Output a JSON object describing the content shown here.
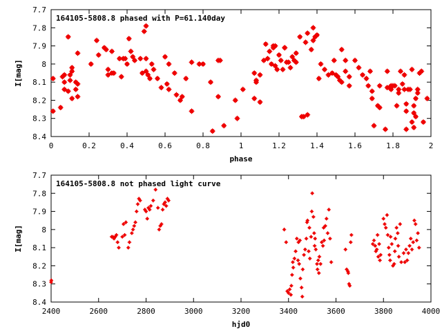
{
  "chart_data": [
    {
      "type": "scatter",
      "title": "164105-5808.8 phased with P=61.140day",
      "xlabel": "phase",
      "ylabel": "I[mag]",
      "xlim": [
        0,
        2
      ],
      "ylim": [
        7.7,
        8.4
      ],
      "y_inverted": true,
      "xticks": [
        0,
        0.2,
        0.4,
        0.6,
        0.8,
        1,
        1.2,
        1.4,
        1.6,
        1.8,
        2
      ],
      "xtick_labels": [
        "0",
        "0.2",
        "0.4",
        "0.6",
        "0.8",
        "1",
        "1.2",
        "1.4",
        "1.6",
        "1.8",
        "2"
      ],
      "yticks": [
        7.7,
        7.8,
        7.9,
        8.0,
        8.1,
        8.2,
        8.3,
        8.4
      ],
      "ytick_labels": [
        "7.7",
        "7.8",
        "7.9",
        "8",
        "8.1",
        "8.2",
        "8.3",
        "8.4"
      ],
      "grid": false,
      "color": "#ee0000",
      "points": [
        [
          0.01,
          8.08
        ],
        [
          0.01,
          8.26
        ],
        [
          0.05,
          8.24
        ],
        [
          0.06,
          8.07
        ],
        [
          0.07,
          8.06
        ],
        [
          0.07,
          8.14
        ],
        [
          0.07,
          8.1
        ],
        [
          0.09,
          8.15
        ],
        [
          0.09,
          7.85
        ],
        [
          0.1,
          8.09
        ],
        [
          0.1,
          8.06
        ],
        [
          0.11,
          8.04
        ],
        [
          0.11,
          8.02
        ],
        [
          0.11,
          8.19
        ],
        [
          0.13,
          8.1
        ],
        [
          0.13,
          8.14
        ],
        [
          0.14,
          8.11
        ],
        [
          0.14,
          8.18
        ],
        [
          0.14,
          7.94
        ],
        [
          0.21,
          8.0
        ],
        [
          0.24,
          7.87
        ],
        [
          0.25,
          7.95
        ],
        [
          0.28,
          7.91
        ],
        [
          0.29,
          7.92
        ],
        [
          0.3,
          8.06
        ],
        [
          0.3,
          8.03
        ],
        [
          0.32,
          8.05
        ],
        [
          0.32,
          7.93
        ],
        [
          0.33,
          8.05
        ],
        [
          0.36,
          7.97
        ],
        [
          0.37,
          8.07
        ],
        [
          0.38,
          7.97
        ],
        [
          0.39,
          7.97
        ],
        [
          0.4,
          8.0
        ],
        [
          0.41,
          7.86
        ],
        [
          0.42,
          7.93
        ],
        [
          0.43,
          7.96
        ],
        [
          0.44,
          7.98
        ],
        [
          0.47,
          7.97
        ],
        [
          0.48,
          8.05
        ],
        [
          0.49,
          7.82
        ],
        [
          0.5,
          8.04
        ],
        [
          0.5,
          7.79
        ],
        [
          0.5,
          7.97
        ],
        [
          0.51,
          8.06
        ],
        [
          0.52,
          8.08
        ],
        [
          0.53,
          8.0
        ],
        [
          0.54,
          8.03
        ],
        [
          0.56,
          8.08
        ],
        [
          0.58,
          8.13
        ],
        [
          0.6,
          7.96
        ],
        [
          0.61,
          8.11
        ],
        [
          0.62,
          8.0
        ],
        [
          0.62,
          8.14
        ],
        [
          0.65,
          8.05
        ],
        [
          0.66,
          8.17
        ],
        [
          0.68,
          8.2
        ],
        [
          0.69,
          8.18
        ],
        [
          0.71,
          8.08
        ],
        [
          0.74,
          7.99
        ],
        [
          0.74,
          8.26
        ],
        [
          0.78,
          8.0
        ],
        [
          0.8,
          8.0
        ],
        [
          0.84,
          8.1
        ],
        [
          0.85,
          8.37
        ],
        [
          0.88,
          8.18
        ],
        [
          0.88,
          7.98
        ],
        [
          0.89,
          7.98
        ],
        [
          0.91,
          8.34
        ],
        [
          0.97,
          8.2
        ],
        [
          0.98,
          8.3
        ],
        [
          1.01,
          8.14
        ],
        [
          1.07,
          8.05
        ],
        [
          1.07,
          8.19
        ],
        [
          1.08,
          8.09
        ],
        [
          1.08,
          8.1
        ],
        [
          1.1,
          8.21
        ],
        [
          1.1,
          8.06
        ],
        [
          1.12,
          7.98
        ],
        [
          1.13,
          7.89
        ],
        [
          1.14,
          7.97
        ],
        [
          1.15,
          7.93
        ],
        [
          1.16,
          8.0
        ],
        [
          1.17,
          7.9
        ],
        [
          1.17,
          7.91
        ],
        [
          1.18,
          7.9
        ],
        [
          1.18,
          8.01
        ],
        [
          1.19,
          8.03
        ],
        [
          1.2,
          7.95
        ],
        [
          1.21,
          7.98
        ],
        [
          1.22,
          8.03
        ],
        [
          1.23,
          7.91
        ],
        [
          1.23,
          7.91
        ],
        [
          1.24,
          7.99
        ],
        [
          1.25,
          7.99
        ],
        [
          1.26,
          8.02
        ],
        [
          1.27,
          7.96
        ],
        [
          1.28,
          7.98
        ],
        [
          1.29,
          7.99
        ],
        [
          1.29,
          7.94
        ],
        [
          1.31,
          7.85
        ],
        [
          1.32,
          8.29
        ],
        [
          1.32,
          8.29
        ],
        [
          1.33,
          8.29
        ],
        [
          1.34,
          7.88
        ],
        [
          1.35,
          7.83
        ],
        [
          1.35,
          8.28
        ],
        [
          1.37,
          7.92
        ],
        [
          1.38,
          7.87
        ],
        [
          1.38,
          7.8
        ],
        [
          1.39,
          7.85
        ],
        [
          1.4,
          7.84
        ],
        [
          1.41,
          8.08
        ],
        [
          1.42,
          8.0
        ],
        [
          1.44,
          8.03
        ],
        [
          1.46,
          8.06
        ],
        [
          1.48,
          8.05
        ],
        [
          1.49,
          7.98
        ],
        [
          1.5,
          8.06
        ],
        [
          1.51,
          8.07
        ],
        [
          1.52,
          8.09
        ],
        [
          1.53,
          7.92
        ],
        [
          1.53,
          8.1
        ],
        [
          1.55,
          7.98
        ],
        [
          1.55,
          8.04
        ],
        [
          1.57,
          8.12
        ],
        [
          1.57,
          8.07
        ],
        [
          1.6,
          7.98
        ],
        [
          1.62,
          8.02
        ],
        [
          1.64,
          8.06
        ],
        [
          1.66,
          8.08
        ],
        [
          1.67,
          8.12
        ],
        [
          1.68,
          8.04
        ],
        [
          1.69,
          8.15
        ],
        [
          1.69,
          8.19
        ],
        [
          1.7,
          8.34
        ],
        [
          1.72,
          8.23
        ],
        [
          1.73,
          8.24
        ],
        [
          1.73,
          8.12
        ],
        [
          1.76,
          8.36
        ],
        [
          1.77,
          8.04
        ],
        [
          1.77,
          8.13
        ],
        [
          1.78,
          8.13
        ],
        [
          1.79,
          8.12
        ],
        [
          1.79,
          8.14
        ],
        [
          1.8,
          8.12
        ],
        [
          1.8,
          8.12
        ],
        [
          1.81,
          8.12
        ],
        [
          1.82,
          8.23
        ],
        [
          1.83,
          8.14
        ],
        [
          1.83,
          8.16
        ],
        [
          1.84,
          8.04
        ],
        [
          1.85,
          8.11
        ],
        [
          1.86,
          8.14
        ],
        [
          1.86,
          8.06
        ],
        [
          1.87,
          8.26
        ],
        [
          1.87,
          8.22
        ],
        [
          1.87,
          8.36
        ],
        [
          1.88,
          8.14
        ],
        [
          1.89,
          8.14
        ],
        [
          1.9,
          8.03
        ],
        [
          1.9,
          8.32
        ],
        [
          1.91,
          8.27
        ],
        [
          1.91,
          8.23
        ],
        [
          1.91,
          8.35
        ],
        [
          1.92,
          8.19
        ],
        [
          1.92,
          8.29
        ],
        [
          1.93,
          8.14
        ],
        [
          1.93,
          8.16
        ],
        [
          1.94,
          8.05
        ],
        [
          1.95,
          8.04
        ],
        [
          1.96,
          8.32
        ],
        [
          1.98,
          8.19
        ]
      ]
    },
    {
      "type": "scatter",
      "title": "164105-5808.8 not phased light curve",
      "xlabel": "hjd0",
      "ylabel": "I[mag]",
      "xlim": [
        2400,
        4000
      ],
      "ylim": [
        7.7,
        8.4
      ],
      "y_inverted": true,
      "xticks": [
        2400,
        2600,
        2800,
        3000,
        3200,
        3400,
        3600,
        3800,
        4000
      ],
      "xtick_labels": [
        "2400",
        "2600",
        "2800",
        "3000",
        "3200",
        "3400",
        "3600",
        "3800",
        "4000"
      ],
      "yticks": [
        7.7,
        7.8,
        7.9,
        8.0,
        8.1,
        8.2,
        8.3,
        8.4
      ],
      "ytick_labels": [
        "7.7",
        "7.8",
        "7.9",
        "8",
        "8.1",
        "8.2",
        "8.3",
        "8.4"
      ],
      "grid": false,
      "color": "#ee0000",
      "points": [
        [
          2400,
          8.29
        ],
        [
          2401,
          8.28
        ],
        [
          2655,
          8.04
        ],
        [
          2660,
          8.04
        ],
        [
          2665,
          8.05
        ],
        [
          2670,
          8.04
        ],
        [
          2675,
          8.03
        ],
        [
          2680,
          8.07
        ],
        [
          2685,
          8.1
        ],
        [
          2700,
          8.04
        ],
        [
          2705,
          7.97
        ],
        [
          2710,
          8.03
        ],
        [
          2715,
          7.96
        ],
        [
          2725,
          8.1
        ],
        [
          2730,
          8.07
        ],
        [
          2740,
          8.02
        ],
        [
          2745,
          8.0
        ],
        [
          2750,
          7.98
        ],
        [
          2755,
          7.96
        ],
        [
          2760,
          7.9
        ],
        [
          2765,
          7.86
        ],
        [
          2770,
          7.83
        ],
        [
          2775,
          7.84
        ],
        [
          2795,
          7.89
        ],
        [
          2800,
          7.9
        ],
        [
          2805,
          7.94
        ],
        [
          2810,
          7.88
        ],
        [
          2815,
          7.89
        ],
        [
          2820,
          7.87
        ],
        [
          2830,
          7.84
        ],
        [
          2840,
          7.78
        ],
        [
          2850,
          7.88
        ],
        [
          2855,
          8.0
        ],
        [
          2860,
          7.98
        ],
        [
          2865,
          7.97
        ],
        [
          2870,
          7.89
        ],
        [
          2875,
          7.86
        ],
        [
          2880,
          7.85
        ],
        [
          2885,
          7.87
        ],
        [
          2890,
          7.83
        ],
        [
          2895,
          7.84
        ],
        [
          3382,
          8.0
        ],
        [
          3390,
          8.07
        ],
        [
          3395,
          8.34
        ],
        [
          3400,
          8.35
        ],
        [
          3405,
          8.33
        ],
        [
          3410,
          8.36
        ],
        [
          3412,
          8.31
        ],
        [
          3415,
          8.25
        ],
        [
          3418,
          8.18
        ],
        [
          3420,
          8.21
        ],
        [
          3425,
          8.16
        ],
        [
          3430,
          8.12
        ],
        [
          3435,
          8.05
        ],
        [
          3440,
          8.17
        ],
        [
          3442,
          8.07
        ],
        [
          3445,
          8.19
        ],
        [
          3448,
          8.06
        ],
        [
          3450,
          8.27
        ],
        [
          3455,
          8.32
        ],
        [
          3458,
          8.37
        ],
        [
          3460,
          8.22
        ],
        [
          3465,
          8.14
        ],
        [
          3470,
          8.11
        ],
        [
          3475,
          8.05
        ],
        [
          3478,
          7.96
        ],
        [
          3480,
          7.95
        ],
        [
          3485,
          8.12
        ],
        [
          3488,
          7.99
        ],
        [
          3490,
          8.16
        ],
        [
          3495,
          8.04
        ],
        [
          3498,
          7.9
        ],
        [
          3500,
          7.8
        ],
        [
          3505,
          7.93
        ],
        [
          3508,
          8.02
        ],
        [
          3510,
          8.09
        ],
        [
          3512,
          8.05
        ],
        [
          3515,
          8.11
        ],
        [
          3520,
          8.19
        ],
        [
          3522,
          8.22
        ],
        [
          3525,
          8.17
        ],
        [
          3528,
          8.24
        ],
        [
          3530,
          8.15
        ],
        [
          3535,
          8.19
        ],
        [
          3540,
          8.07
        ],
        [
          3545,
          8.09
        ],
        [
          3548,
          7.99
        ],
        [
          3550,
          8.06
        ],
        [
          3555,
          7.98
        ],
        [
          3560,
          7.94
        ],
        [
          3565,
          8.02
        ],
        [
          3570,
          7.89
        ],
        [
          3575,
          8.05
        ],
        [
          3580,
          8.18
        ],
        [
          3640,
          8.11
        ],
        [
          3645,
          8.22
        ],
        [
          3650,
          8.23
        ],
        [
          3652,
          8.24
        ],
        [
          3655,
          8.3
        ],
        [
          3658,
          8.31
        ],
        [
          3662,
          8.07
        ],
        [
          3665,
          8.03
        ],
        [
          3755,
          8.08
        ],
        [
          3760,
          8.06
        ],
        [
          3765,
          8.09
        ],
        [
          3768,
          8.12
        ],
        [
          3772,
          8.11
        ],
        [
          3775,
          8.03
        ],
        [
          3778,
          8.15
        ],
        [
          3782,
          8.08
        ],
        [
          3785,
          8.17
        ],
        [
          3788,
          8.14
        ],
        [
          3800,
          7.94
        ],
        [
          3805,
          7.97
        ],
        [
          3810,
          7.99
        ],
        [
          3815,
          7.92
        ],
        [
          3818,
          8.03
        ],
        [
          3822,
          8.1
        ],
        [
          3825,
          8.14
        ],
        [
          3828,
          8.17
        ],
        [
          3830,
          8.04
        ],
        [
          3835,
          8.08
        ],
        [
          3840,
          8.2
        ],
        [
          3845,
          8.19
        ],
        [
          3848,
          8.12
        ],
        [
          3850,
          8.05
        ],
        [
          3855,
          7.99
        ],
        [
          3860,
          8.02
        ],
        [
          3862,
          8.09
        ],
        [
          3865,
          8.15
        ],
        [
          3870,
          7.97
        ],
        [
          3875,
          8.18
        ],
        [
          3885,
          8.13
        ],
        [
          3890,
          8.18
        ],
        [
          3895,
          8.11
        ],
        [
          3900,
          8.17
        ],
        [
          3905,
          8.13
        ],
        [
          3910,
          8.09
        ],
        [
          3915,
          8.05
        ],
        [
          3920,
          8.11
        ],
        [
          3925,
          8.07
        ],
        [
          3930,
          7.95
        ],
        [
          3935,
          7.97
        ],
        [
          3940,
          8.06
        ],
        [
          3945,
          8.02
        ],
        [
          3950,
          8.1
        ]
      ]
    }
  ]
}
